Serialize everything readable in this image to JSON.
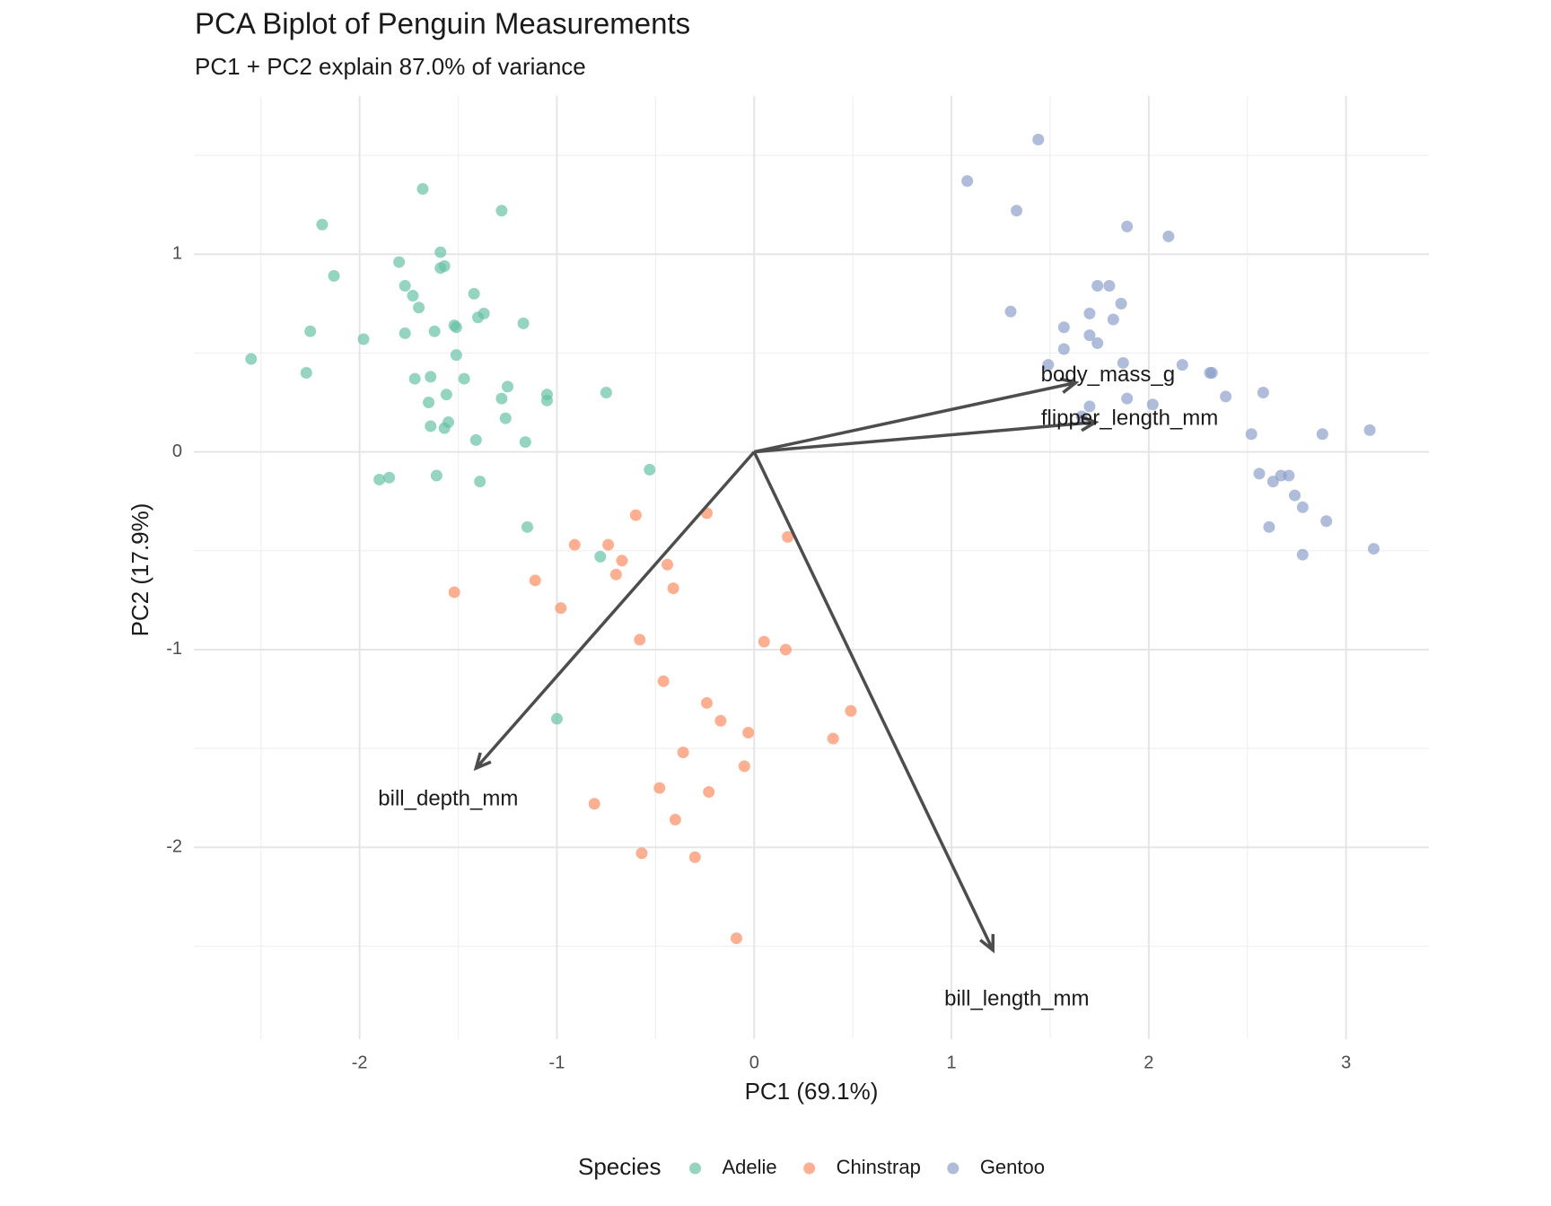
{
  "chart_data": {
    "type": "biplot",
    "title": "PCA Biplot of Penguin Measurements",
    "subtitle": "PC1 + PC2 explain 87.0% of variance",
    "x_label": "PC1 (69.1%)",
    "y_label": "PC2 (17.9%)",
    "legend_title": "Species",
    "legend_position": "bottom",
    "grid": true,
    "xlim": [
      -2.84,
      3.42
    ],
    "ylim": [
      -2.97,
      1.8
    ],
    "xticks": [
      -2,
      -1,
      0,
      1,
      2,
      3
    ],
    "yticks": [
      -2,
      -1,
      0,
      1
    ],
    "x_minor_breaks": [
      -2.5,
      -1.5,
      -0.5,
      0.5,
      1.5,
      2.5
    ],
    "y_minor_breaks": [
      -2.5,
      -1.5,
      -0.5,
      0.5,
      1.5
    ],
    "series": [
      {
        "name": "Adelie",
        "color": "#66c2a5",
        "x": [
          -2.55,
          -2.27,
          -2.25,
          -2.19,
          -2.13,
          -1.98,
          -1.9,
          -1.85,
          -1.8,
          -1.77,
          -1.77,
          -1.73,
          -1.72,
          -1.7,
          -1.68,
          -1.64,
          -1.65,
          -1.64,
          -1.62,
          -1.61,
          -1.59,
          -1.59,
          -1.57,
          -1.57,
          -1.56,
          -1.55,
          -1.52,
          -1.51,
          -1.51,
          -1.47,
          -1.42,
          -1.41,
          -1.4,
          -1.39,
          -1.37,
          -1.28,
          -1.28,
          -1.26,
          -1.25,
          -1.17,
          -1.16,
          -1.15,
          -1.05,
          -1.05,
          -1.0,
          -0.78,
          -0.75,
          -0.53
        ],
        "y": [
          0.47,
          0.4,
          0.61,
          1.15,
          0.89,
          0.57,
          -0.14,
          -0.13,
          0.96,
          0.84,
          0.6,
          0.79,
          0.37,
          0.73,
          1.33,
          0.38,
          0.25,
          0.13,
          0.61,
          -0.12,
          1.01,
          0.93,
          0.94,
          0.12,
          0.29,
          0.15,
          0.64,
          0.63,
          0.49,
          0.37,
          0.8,
          0.06,
          0.68,
          -0.15,
          0.7,
          1.22,
          0.27,
          0.17,
          0.33,
          0.65,
          0.05,
          -0.38,
          0.26,
          0.29,
          -1.35,
          -0.53,
          0.3,
          -0.09
        ]
      },
      {
        "name": "Chinstrap",
        "color": "#fc8d62",
        "x": [
          -1.52,
          -1.11,
          -0.98,
          -0.91,
          -0.81,
          -0.74,
          -0.7,
          -0.67,
          -0.6,
          -0.58,
          -0.57,
          -0.48,
          -0.46,
          -0.44,
          -0.41,
          -0.4,
          -0.36,
          -0.3,
          -0.24,
          -0.24,
          -0.23,
          -0.17,
          -0.09,
          -0.05,
          -0.03,
          0.05,
          0.16,
          0.17,
          0.4,
          0.49
        ],
        "y": [
          -0.71,
          -0.65,
          -0.79,
          -0.47,
          -1.78,
          -0.47,
          -0.62,
          -0.55,
          -0.32,
          -0.95,
          -2.03,
          -1.7,
          -1.16,
          -0.57,
          -0.69,
          -1.86,
          -1.52,
          -2.05,
          -0.31,
          -1.27,
          -1.72,
          -1.36,
          -2.46,
          -1.59,
          -1.42,
          -0.96,
          -1.0,
          -0.43,
          -1.45,
          -1.31
        ]
      },
      {
        "name": "Gentoo",
        "color": "#8da0cb",
        "x": [
          1.08,
          1.3,
          1.33,
          1.44,
          1.49,
          1.57,
          1.57,
          1.66,
          1.7,
          1.7,
          1.7,
          1.74,
          1.74,
          1.8,
          1.82,
          1.86,
          1.87,
          1.89,
          1.89,
          2.02,
          2.1,
          2.17,
          2.31,
          2.32,
          2.39,
          2.52,
          2.56,
          2.58,
          2.61,
          2.63,
          2.67,
          2.71,
          2.74,
          2.78,
          2.78,
          2.88,
          2.9,
          3.12,
          3.14
        ],
        "y": [
          1.37,
          0.71,
          1.22,
          1.58,
          0.44,
          0.63,
          0.52,
          0.18,
          0.7,
          0.59,
          0.23,
          0.84,
          0.55,
          0.84,
          0.67,
          0.75,
          0.45,
          0.27,
          1.14,
          0.24,
          1.09,
          0.44,
          0.4,
          0.4,
          0.28,
          0.09,
          -0.11,
          0.3,
          -0.38,
          -0.15,
          -0.12,
          -0.12,
          -0.22,
          -0.28,
          -0.52,
          0.09,
          -0.35,
          0.11,
          -0.49
        ]
      }
    ],
    "loadings": [
      {
        "name": "body_mass_g",
        "x": 1.63,
        "y": 0.35
      },
      {
        "name": "flipper_length_mm",
        "x": 1.73,
        "y": 0.15
      },
      {
        "name": "bill_depth_mm",
        "x": -1.41,
        "y": -1.6
      },
      {
        "name": "bill_length_mm",
        "x": 1.21,
        "y": -2.52
      }
    ]
  }
}
